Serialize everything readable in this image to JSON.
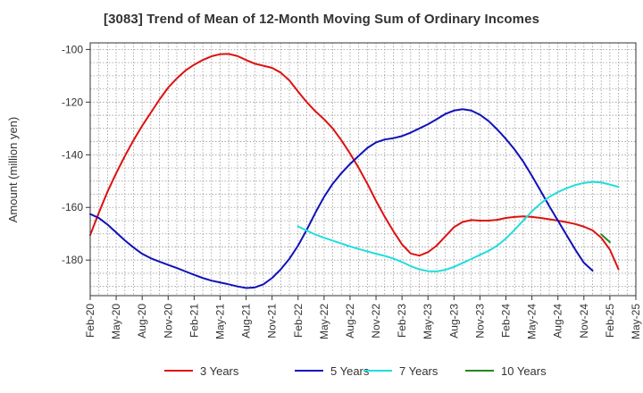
{
  "chart_data": {
    "type": "line",
    "title": "[3083]  Trend of Mean of 12-Month Moving Sum of Ordinary Incomes",
    "xlabel": "",
    "ylabel": "Amount (million yen)",
    "ylim": [
      -193.5,
      -97.5
    ],
    "yticks": [
      -100,
      -120,
      -140,
      -160,
      -180
    ],
    "x_tick_labels": [
      "Feb-20",
      "May-20",
      "Aug-20",
      "Nov-20",
      "Feb-21",
      "May-21",
      "Aug-21",
      "Nov-21",
      "Feb-22",
      "May-22",
      "Aug-22",
      "Nov-22",
      "Feb-23",
      "May-23",
      "Aug-23",
      "Nov-23",
      "Feb-24",
      "May-24",
      "Aug-24",
      "Nov-24",
      "Feb-25",
      "May-25"
    ],
    "x_start": "Feb-20",
    "x_end": "May-25",
    "grid": true,
    "legend_position": "bottom",
    "series": [
      {
        "name": "3 Years",
        "color": "#dd1111",
        "start_month_index": 0,
        "values": [
          -170.5,
          -162,
          -154,
          -147,
          -140.5,
          -134.5,
          -129,
          -124,
          -119,
          -114.5,
          -111,
          -108,
          -105.8,
          -104,
          -102.6,
          -101.8,
          -101.7,
          -102.5,
          -104,
          -105.4,
          -106.2,
          -107,
          -108.8,
          -111.8,
          -116,
          -120,
          -123.5,
          -126.5,
          -130,
          -134.5,
          -139.5,
          -145,
          -151,
          -157.5,
          -163.5,
          -169,
          -174,
          -177.5,
          -178.3,
          -177,
          -174.5,
          -171,
          -167.5,
          -165.5,
          -164.8,
          -165,
          -165,
          -164.7,
          -164,
          -163.6,
          -163.4,
          -163.6,
          -164,
          -164.5,
          -165,
          -165.6,
          -166.3,
          -167.3,
          -168.7,
          -171.5,
          -176,
          -183.5
        ]
      },
      {
        "name": "5 Years",
        "color": "#1111bb",
        "start_month_index": 0,
        "values": [
          -162.5,
          -164,
          -166.5,
          -169.5,
          -172.5,
          -175.2,
          -177.6,
          -179.3,
          -180.6,
          -181.8,
          -183,
          -184.3,
          -185.6,
          -186.8,
          -187.8,
          -188.5,
          -189.2,
          -190,
          -190.6,
          -190.4,
          -189.2,
          -186.8,
          -183.5,
          -179.5,
          -174.5,
          -168.5,
          -162,
          -156,
          -151,
          -147,
          -143.5,
          -140.4,
          -137.4,
          -135.3,
          -134.2,
          -133.7,
          -132.9,
          -131.6,
          -130,
          -128.4,
          -126.5,
          -124.5,
          -123.2,
          -122.7,
          -123.2,
          -124.8,
          -127.2,
          -130.4,
          -134,
          -138,
          -142.6,
          -148,
          -153.7,
          -159.5,
          -165,
          -170.5,
          -176,
          -181,
          -184
        ]
      },
      {
        "name": "7 Years",
        "color": "#22dddd",
        "start_month_index": 24,
        "values": [
          -167.2,
          -168.8,
          -170.3,
          -171.5,
          -172.6,
          -173.7,
          -174.8,
          -175.8,
          -176.7,
          -177.6,
          -178.4,
          -179.4,
          -180.7,
          -182.3,
          -183.5,
          -184.2,
          -184.3,
          -183.7,
          -182.6,
          -181.1,
          -179.6,
          -178,
          -176.5,
          -174.5,
          -171.8,
          -168.5,
          -165,
          -161.5,
          -158.5,
          -156,
          -154.2,
          -152.7,
          -151.5,
          -150.7,
          -150.3,
          -150.5,
          -151.3,
          -152.2
        ]
      },
      {
        "name": "10 Years",
        "color": "#228822",
        "start_month_index": 59,
        "values": [
          -170.2,
          -173.2
        ]
      }
    ]
  }
}
